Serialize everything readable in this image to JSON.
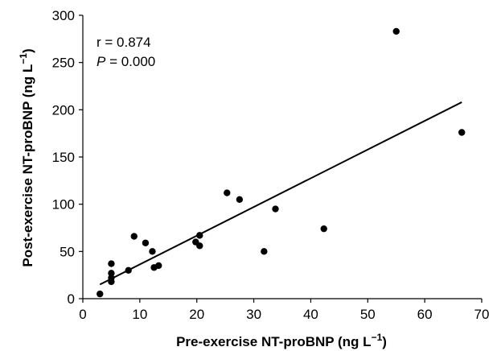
{
  "chart_data": {
    "type": "scatter",
    "title": "",
    "xlabel": "Pre-exercise NT-proBNP (ng L",
    "xlabel_sup": "−1",
    "xlabel_end": ")",
    "ylabel": "Post-exercise NT-proBNP (ng L",
    "ylabel_sup": "−1",
    "ylabel_end": ")",
    "xlim": [
      0,
      70
    ],
    "ylim": [
      0,
      300
    ],
    "xticks": [
      0,
      10,
      20,
      30,
      40,
      50,
      60,
      70
    ],
    "yticks": [
      0,
      50,
      100,
      150,
      200,
      250,
      300
    ],
    "grid": false,
    "points": [
      {
        "x": 3.0,
        "y": 5
      },
      {
        "x": 5.0,
        "y": 18
      },
      {
        "x": 5.0,
        "y": 22
      },
      {
        "x": 5.0,
        "y": 27
      },
      {
        "x": 5.0,
        "y": 37
      },
      {
        "x": 8.0,
        "y": 30
      },
      {
        "x": 9.0,
        "y": 66
      },
      {
        "x": 11.0,
        "y": 59
      },
      {
        "x": 12.2,
        "y": 50
      },
      {
        "x": 12.5,
        "y": 33
      },
      {
        "x": 13.3,
        "y": 35
      },
      {
        "x": 19.8,
        "y": 60
      },
      {
        "x": 20.5,
        "y": 56
      },
      {
        "x": 20.5,
        "y": 67
      },
      {
        "x": 25.3,
        "y": 112
      },
      {
        "x": 27.5,
        "y": 105
      },
      {
        "x": 31.8,
        "y": 50
      },
      {
        "x": 33.8,
        "y": 95
      },
      {
        "x": 42.3,
        "y": 74
      },
      {
        "x": 55.0,
        "y": 283
      },
      {
        "x": 66.5,
        "y": 176
      }
    ],
    "trendline": {
      "x": [
        3.0,
        66.5
      ],
      "y": [
        15,
        208
      ]
    },
    "annotations": {
      "r_label": "r = 0.874",
      "p_symbol": "P",
      "p_rest": " = 0.000"
    },
    "colors": {
      "points": "#000000",
      "line": "#000000",
      "axes": "#000000"
    }
  }
}
